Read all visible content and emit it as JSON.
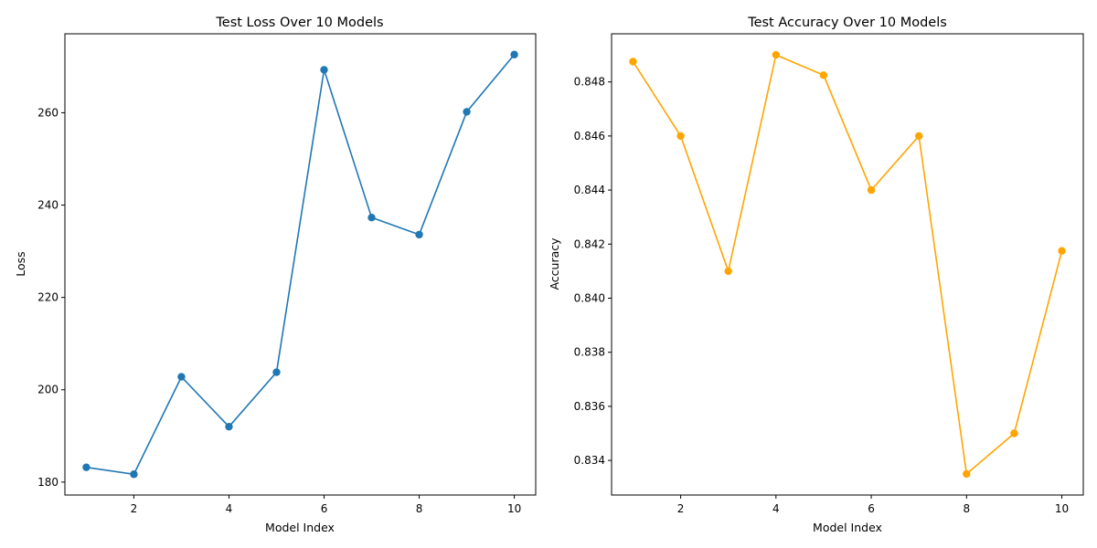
{
  "chart_data": [
    {
      "type": "line",
      "title": "Test Loss Over 10 Models",
      "xlabel": "Model Index",
      "ylabel": "Loss",
      "x": [
        1,
        2,
        3,
        4,
        5,
        6,
        7,
        8,
        9,
        10
      ],
      "series": [
        {
          "values": [
            183.2,
            181.7,
            202.8,
            192.0,
            203.8,
            269.3,
            237.3,
            233.6,
            260.2,
            272.6
          ],
          "color": "#1f77b4"
        }
      ],
      "xlim": [
        0.55,
        10.45
      ],
      "ylim": [
        177.2,
        277.1
      ],
      "xticks": [
        2,
        4,
        6,
        8,
        10
      ],
      "xtick_labels": [
        "2",
        "4",
        "6",
        "8",
        "10"
      ],
      "yticks": [
        180,
        200,
        220,
        240,
        260
      ],
      "ytick_labels": [
        "180",
        "200",
        "220",
        "240",
        "260"
      ],
      "marker": "circle",
      "grid": false
    },
    {
      "type": "line",
      "title": "Test Accuracy Over 10 Models",
      "xlabel": "Model Index",
      "ylabel": "Accuracy",
      "x": [
        1,
        2,
        3,
        4,
        5,
        6,
        7,
        8,
        9,
        10
      ],
      "series": [
        {
          "values": [
            0.84875,
            0.846,
            0.841,
            0.849,
            0.84825,
            0.844,
            0.846,
            0.8335,
            0.835,
            0.84175
          ],
          "color": "#ffa500"
        }
      ],
      "xlim": [
        0.55,
        10.45
      ],
      "ylim": [
        0.83272,
        0.84978
      ],
      "xticks": [
        2,
        4,
        6,
        8,
        10
      ],
      "xtick_labels": [
        "2",
        "4",
        "6",
        "8",
        "10"
      ],
      "yticks": [
        0.834,
        0.836,
        0.838,
        0.84,
        0.842,
        0.844,
        0.846,
        0.848
      ],
      "ytick_labels": [
        "0.834",
        "0.836",
        "0.838",
        "0.840",
        "0.842",
        "0.844",
        "0.846",
        "0.848"
      ],
      "marker": "circle",
      "grid": false
    }
  ]
}
